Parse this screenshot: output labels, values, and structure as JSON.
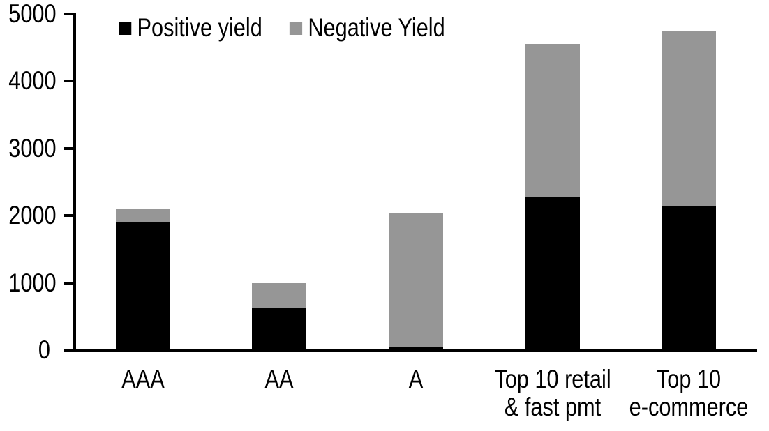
{
  "chart_data": {
    "type": "bar",
    "stacked": true,
    "categories": [
      "AAA",
      "AA",
      "A",
      "Top 10 retail\n& fast pmt",
      "Top 10\ne-commerce"
    ],
    "series": [
      {
        "name": "Positive yield",
        "color": "#000000",
        "values": [
          1900,
          620,
          50,
          2270,
          2140
        ]
      },
      {
        "name": "Negative Yield",
        "color": "#969696",
        "values": [
          210,
          380,
          1980,
          2280,
          2600
        ]
      }
    ],
    "stack_totals": [
      2110,
      1000,
      2030,
      4550,
      4740
    ],
    "ylim": [
      0,
      5000
    ],
    "yticks": [
      0,
      1000,
      2000,
      3000,
      4000,
      5000
    ],
    "ytick_labels": [
      "0",
      "1000",
      "2000",
      "3000",
      "4000",
      "5000"
    ],
    "legend_position": "top",
    "grid": false,
    "background_color": "#ffffff",
    "axis_color": "#000000"
  }
}
